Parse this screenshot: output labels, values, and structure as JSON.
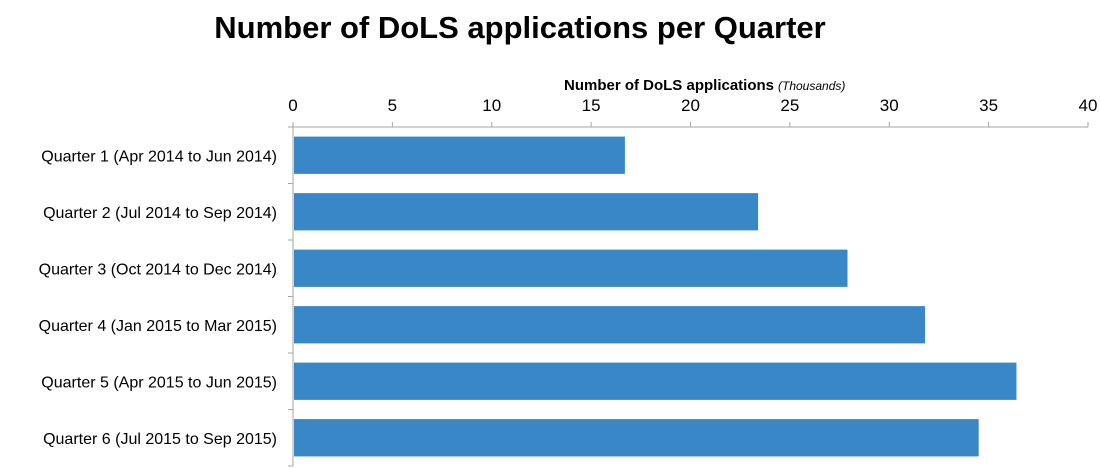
{
  "chart_data": {
    "type": "bar",
    "orientation": "horizontal",
    "title": "Number of DoLS applications per Quarter",
    "xlabel": "Number of DoLS applications",
    "xlabel_unit": "(Thousands)",
    "ylabel": "",
    "xlim": [
      0,
      40
    ],
    "x_ticks": [
      0,
      5,
      10,
      15,
      20,
      25,
      30,
      35,
      40
    ],
    "x_axis_position": "top",
    "grid": false,
    "bar_color": "#3A87C8",
    "categories": [
      "Quarter 1 (Apr 2014 to Jun 2014)",
      "Quarter 2 (Jul 2014 to Sep 2014)",
      "Quarter 3 (Oct 2014 to Dec 2014)",
      "Quarter 4 (Jan 2015 to Mar 2015)",
      "Quarter 5 (Apr 2015 to Jun 2015)",
      "Quarter 6 (Jul 2015 to Sep 2015)"
    ],
    "values": [
      16.7,
      23.4,
      27.9,
      31.8,
      36.4,
      34.5
    ]
  }
}
